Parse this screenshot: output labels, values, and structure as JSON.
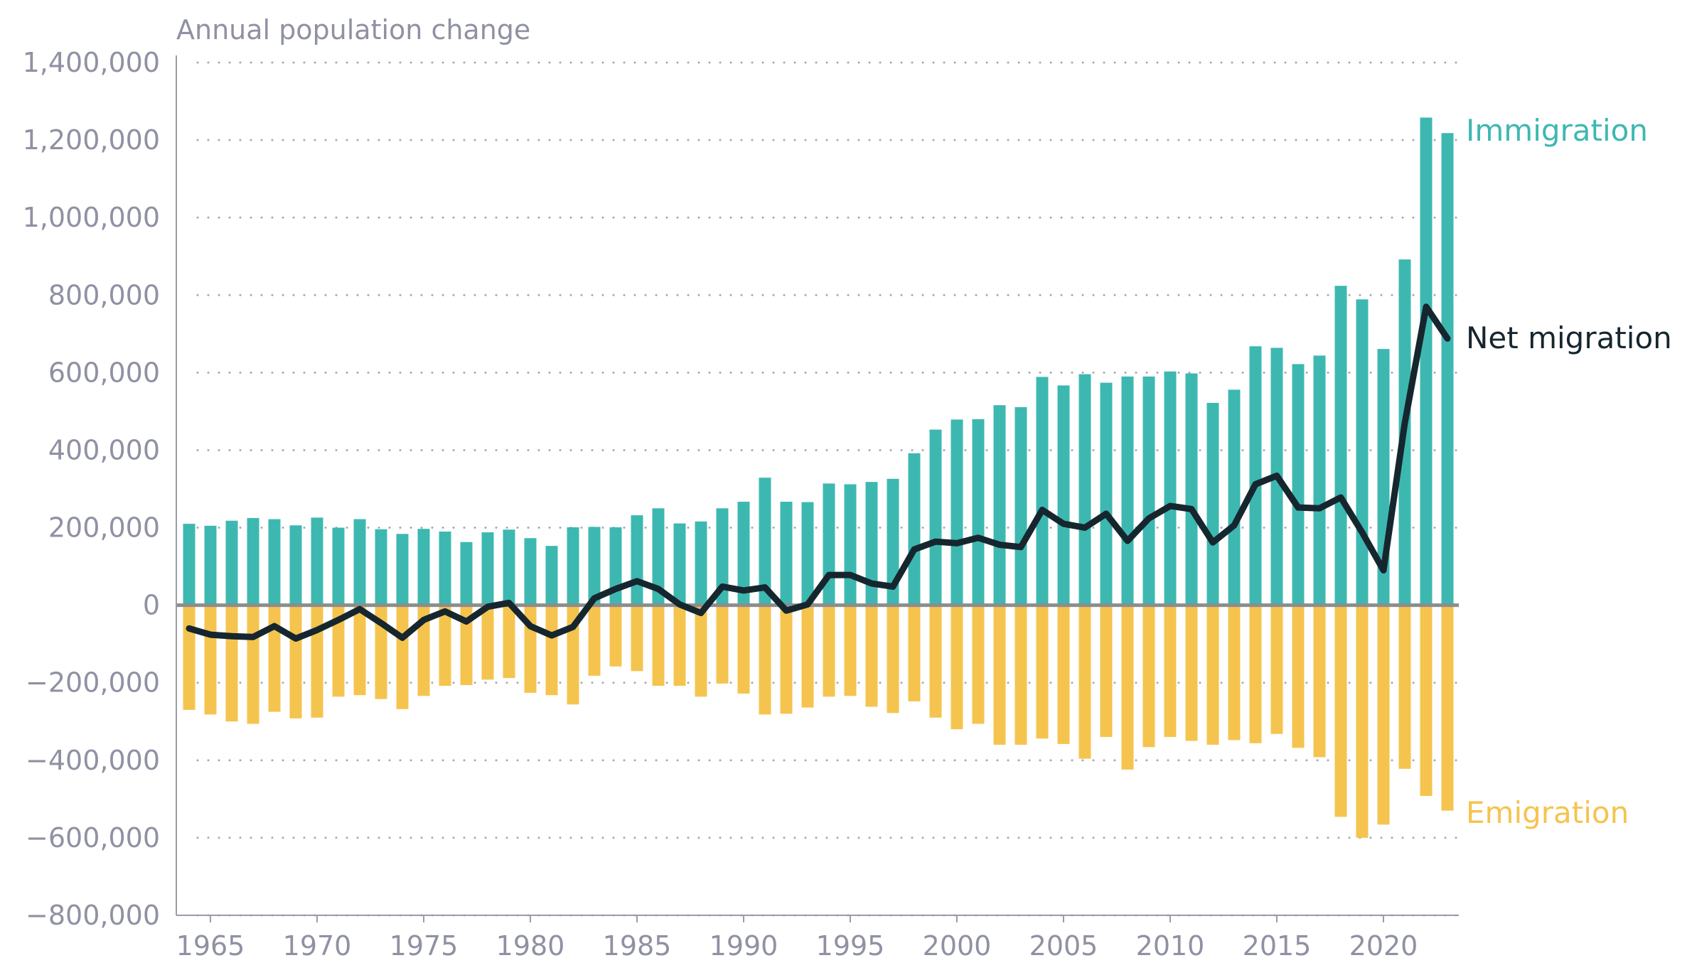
{
  "chart_data": {
    "type": "bar",
    "ylabel": "Annual population change",
    "ylim": [
      -800000,
      1400000
    ],
    "yticks": [
      -800000,
      -600000,
      -400000,
      -200000,
      0,
      200000,
      400000,
      600000,
      800000,
      1000000,
      1200000,
      1400000
    ],
    "ytick_labels": [
      "−800,000",
      "−600,000",
      "−400,000",
      "−200,000",
      "0",
      "200,000",
      "400,000",
      "600,000",
      "800,000",
      "1,000,000",
      "1,200,000",
      "1,400,000"
    ],
    "xticks": [
      1965,
      1970,
      1975,
      1980,
      1985,
      1990,
      1995,
      2000,
      2005,
      2010,
      2015,
      2020
    ],
    "grid": true,
    "x": [
      1964,
      1965,
      1966,
      1967,
      1968,
      1969,
      1970,
      1971,
      1972,
      1973,
      1974,
      1975,
      1976,
      1977,
      1978,
      1979,
      1980,
      1981,
      1982,
      1983,
      1984,
      1985,
      1986,
      1987,
      1988,
      1989,
      1990,
      1991,
      1992,
      1993,
      1994,
      1995,
      1996,
      1997,
      1998,
      1999,
      2000,
      2001,
      2002,
      2003,
      2004,
      2005,
      2006,
      2007,
      2008,
      2009,
      2010,
      2011,
      2012,
      2013,
      2014,
      2015,
      2016,
      2017,
      2018,
      2019,
      2020,
      2021,
      2022,
      2023
    ],
    "series": [
      {
        "name": "Immigration",
        "kind": "bar",
        "color": "#3db8b1",
        "values": [
          210000,
          205000,
          218000,
          225000,
          222000,
          206000,
          226000,
          200000,
          222000,
          196000,
          184000,
          197000,
          190000,
          163000,
          188000,
          195000,
          173000,
          153000,
          201000,
          202000,
          201000,
          232000,
          250000,
          211000,
          216000,
          250000,
          267000,
          329000,
          267000,
          266000,
          314000,
          312000,
          318000,
          326000,
          392000,
          453000,
          479000,
          480000,
          516000,
          511000,
          589000,
          567000,
          596000,
          574000,
          590000,
          590000,
          603000,
          598000,
          522000,
          556000,
          668000,
          664000,
          622000,
          644000,
          824000,
          789000,
          661000,
          892000,
          1258000,
          1218000
        ]
      },
      {
        "name": "Emigration",
        "kind": "bar",
        "color": "#f5c44e",
        "values": [
          -270000,
          -282000,
          -300000,
          -306000,
          -275000,
          -292000,
          -290000,
          -236000,
          -232000,
          -242000,
          -268000,
          -234000,
          -208000,
          -206000,
          -192000,
          -188000,
          -226000,
          -232000,
          -256000,
          -182000,
          -158000,
          -170000,
          -208000,
          -208000,
          -236000,
          -202000,
          -228000,
          -282000,
          -280000,
          -264000,
          -236000,
          -234000,
          -262000,
          -278000,
          -248000,
          -290000,
          -320000,
          -306000,
          -360000,
          -360000,
          -344000,
          -358000,
          -396000,
          -340000,
          -424000,
          -366000,
          -340000,
          -350000,
          -360000,
          -348000,
          -356000,
          -332000,
          -368000,
          -392000,
          -546000,
          -600000,
          -566000,
          -422000,
          -492000,
          -530000
        ]
      },
      {
        "name": "Net migration",
        "kind": "line",
        "color": "#16262f",
        "values": [
          -60000,
          -76000,
          -80000,
          -82000,
          -54000,
          -86000,
          -64000,
          -38000,
          -10000,
          -46000,
          -84000,
          -38000,
          -16000,
          -42000,
          -4000,
          6000,
          -54000,
          -78000,
          -56000,
          18000,
          42000,
          62000,
          42000,
          2000,
          -20000,
          48000,
          38000,
          46000,
          -14000,
          2000,
          78000,
          78000,
          56000,
          48000,
          144000,
          164000,
          160000,
          174000,
          156000,
          150000,
          246000,
          210000,
          200000,
          236000,
          166000,
          224000,
          256000,
          248000,
          162000,
          206000,
          312000,
          334000,
          252000,
          250000,
          278000,
          188000,
          90000,
          470000,
          770000,
          688000
        ]
      }
    ],
    "annotations": [
      {
        "text": "Immigration",
        "color": "#3db8b1"
      },
      {
        "text": "Net migration",
        "color": "#16262f"
      },
      {
        "text": "Emigration",
        "color": "#f5c44e"
      }
    ]
  }
}
